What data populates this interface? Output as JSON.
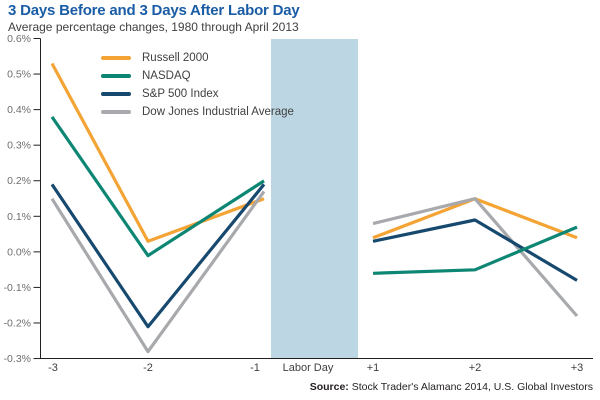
{
  "header": {
    "title": "3 Days Before and 3 Days After Labor Day",
    "subtitle": "Average percentage changes, 1980 through April 2013"
  },
  "colors": {
    "title": "#1A5DA6",
    "band": "#BCD7E3",
    "axis": "#231F20",
    "y_tick_label": "#6D6E71",
    "x_tick_label": "#414042",
    "russell": "#F4A335",
    "nasdaq": "#0E8674",
    "sp500": "#17496F",
    "dow": "#A7A9AC"
  },
  "chart_data": {
    "type": "line",
    "title": "3 Days Before and 3 Days After Labor Day",
    "subtitle": "Average percentage changes, 1980 through April 2013",
    "x_categories_before": [
      "-3",
      "-2",
      "-1"
    ],
    "band_label": "Labor Day",
    "x_categories_after": [
      "+1",
      "+2",
      "+3"
    ],
    "y_tick_labels": [
      "0.6%",
      "0.5%",
      "0.4%",
      "0.3%",
      "0.2%",
      "0.1%",
      "0.0%",
      "-0.1%",
      "-0.2%",
      "-0.3%"
    ],
    "ylim": [
      -0.3,
      0.6
    ],
    "ylabel": "",
    "xlabel": "",
    "grid": false,
    "legend_position": "top-left-inside",
    "series": [
      {
        "name": "Russell 2000",
        "color_key": "russell",
        "before": [
          0.53,
          0.03,
          0.15
        ],
        "after": [
          0.04,
          0.15,
          0.04
        ]
      },
      {
        "name": "NASDAQ",
        "color_key": "nasdaq",
        "before": [
          0.38,
          -0.01,
          0.2
        ],
        "after": [
          -0.06,
          -0.05,
          0.07
        ]
      },
      {
        "name": "S&P 500 Index",
        "color_key": "sp500",
        "before": [
          0.19,
          -0.21,
          0.19
        ],
        "after": [
          0.03,
          0.09,
          -0.08
        ]
      },
      {
        "name": "Dow Jones Industrial Average",
        "color_key": "dow",
        "before": [
          0.15,
          -0.28,
          0.17
        ],
        "after": [
          0.08,
          0.15,
          -0.18
        ]
      }
    ]
  },
  "footer": {
    "source_label": "Source:",
    "source_text": " Stock Trader's Alamanc 2014, U.S. Global Investors"
  }
}
